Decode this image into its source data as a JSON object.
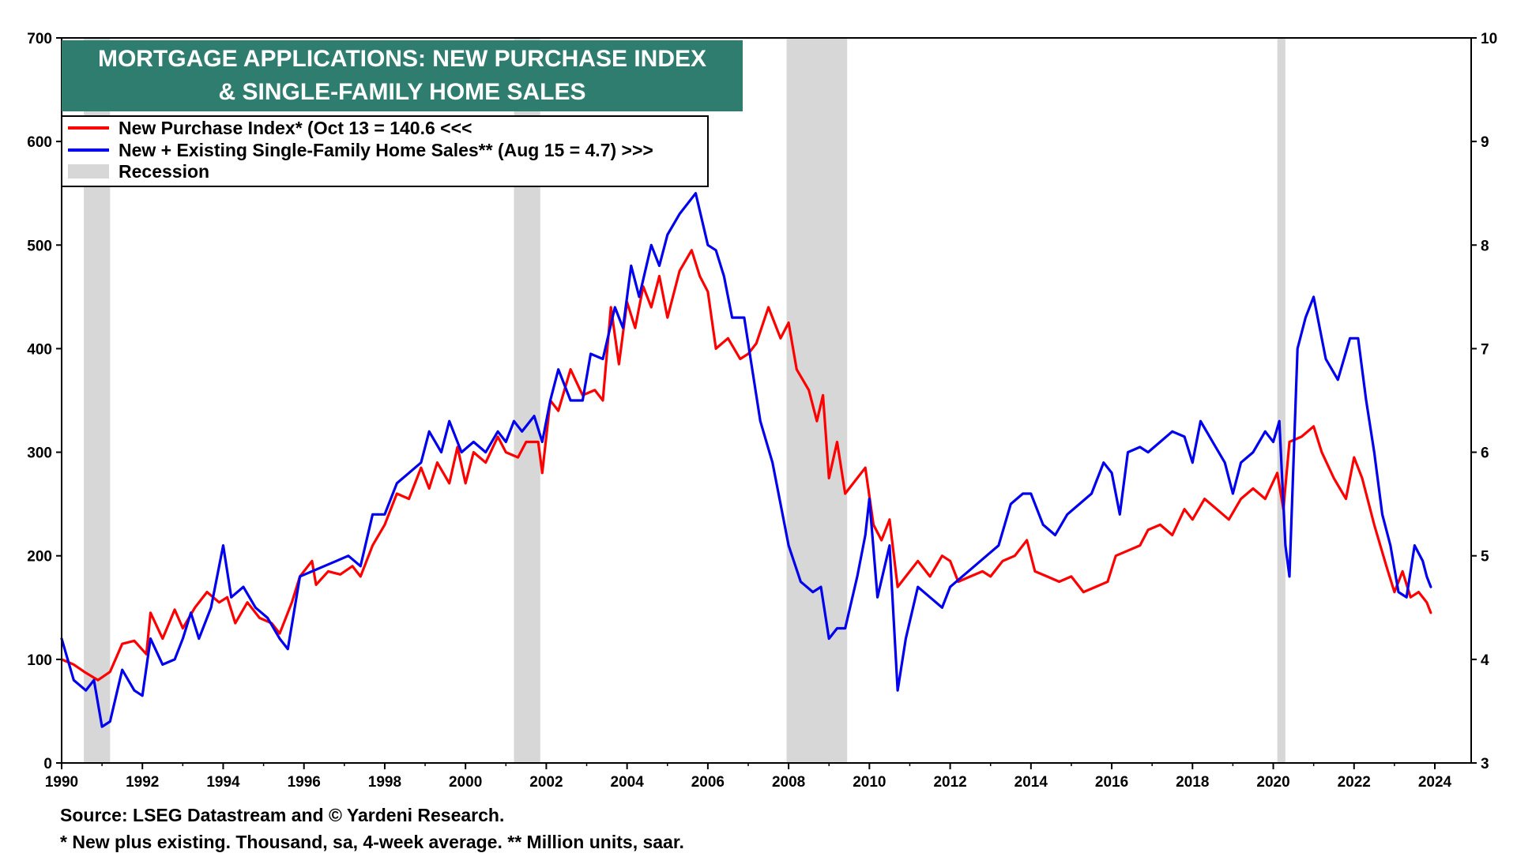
{
  "colors": {
    "red_series": "#ff0000",
    "blue_series": "#0000ee",
    "recession": "#d7d7d7",
    "title_bg": "#2e7d6e",
    "title_text": "#ffffff"
  },
  "chart_data": {
    "type": "line",
    "title": "MORTGAGE APPLICATIONS: NEW PURCHASE INDEX & SINGLE-FAMILY HOME SALES",
    "title_lines": [
      "MORTGAGE APPLICATIONS: NEW PURCHASE INDEX",
      "& SINGLE-FAMILY HOME SALES"
    ],
    "xlabel": "",
    "ylabel_left": "",
    "ylabel_right": "",
    "xlim": [
      1990,
      2024.9
    ],
    "ylim_left": [
      0,
      700
    ],
    "ylim_right": [
      3,
      10
    ],
    "x_ticks": [
      1990,
      1992,
      1994,
      1996,
      1998,
      2000,
      2002,
      2004,
      2006,
      2008,
      2010,
      2012,
      2014,
      2016,
      2018,
      2020,
      2022,
      2024
    ],
    "y_left_ticks": [
      0,
      100,
      200,
      300,
      400,
      500,
      600,
      700
    ],
    "y_right_ticks": [
      3,
      4,
      5,
      6,
      7,
      8,
      9,
      10
    ],
    "legend_position": "top-left",
    "legend": [
      {
        "label": "New Purchase Index* (Oct 13 = 140.6 <<<",
        "kind": "line",
        "color_key": "red_series"
      },
      {
        "label": "New + Existing Single-Family Home Sales** (Aug 15 = 4.7) >>>",
        "kind": "line",
        "color_key": "blue_series"
      },
      {
        "label": "Recession",
        "kind": "box",
        "color_key": "recession"
      }
    ],
    "recessions": [
      [
        1990.55,
        1991.2
      ],
      [
        2001.2,
        2001.85
      ],
      [
        2007.95,
        2009.45
      ],
      [
        2020.1,
        2020.3
      ]
    ],
    "series": [
      {
        "name": "New Purchase Index",
        "axis": "left",
        "color_key": "red_series",
        "points": [
          [
            1990.0,
            100
          ],
          [
            1990.3,
            95
          ],
          [
            1990.6,
            87
          ],
          [
            1990.9,
            80
          ],
          [
            1991.2,
            88
          ],
          [
            1991.5,
            115
          ],
          [
            1991.8,
            118
          ],
          [
            1992.1,
            105
          ],
          [
            1992.2,
            145
          ],
          [
            1992.5,
            120
          ],
          [
            1992.8,
            148
          ],
          [
            1993.0,
            130
          ],
          [
            1993.3,
            150
          ],
          [
            1993.6,
            165
          ],
          [
            1993.9,
            155
          ],
          [
            1994.1,
            160
          ],
          [
            1994.3,
            135
          ],
          [
            1994.6,
            155
          ],
          [
            1994.9,
            140
          ],
          [
            1995.2,
            135
          ],
          [
            1995.4,
            125
          ],
          [
            1995.7,
            155
          ],
          [
            1995.9,
            180
          ],
          [
            1996.2,
            195
          ],
          [
            1996.3,
            172
          ],
          [
            1996.6,
            185
          ],
          [
            1996.9,
            182
          ],
          [
            1997.2,
            190
          ],
          [
            1997.4,
            180
          ],
          [
            1997.7,
            210
          ],
          [
            1998.0,
            230
          ],
          [
            1998.3,
            260
          ],
          [
            1998.6,
            255
          ],
          [
            1998.9,
            285
          ],
          [
            1999.1,
            265
          ],
          [
            1999.3,
            290
          ],
          [
            1999.6,
            270
          ],
          [
            1999.8,
            305
          ],
          [
            2000.0,
            270
          ],
          [
            2000.2,
            300
          ],
          [
            2000.5,
            290
          ],
          [
            2000.8,
            315
          ],
          [
            2001.0,
            300
          ],
          [
            2001.3,
            295
          ],
          [
            2001.5,
            310
          ],
          [
            2001.8,
            310
          ],
          [
            2001.9,
            280
          ],
          [
            2002.1,
            350
          ],
          [
            2002.3,
            340
          ],
          [
            2002.6,
            380
          ],
          [
            2002.9,
            355
          ],
          [
            2003.2,
            360
          ],
          [
            2003.4,
            350
          ],
          [
            2003.6,
            440
          ],
          [
            2003.8,
            385
          ],
          [
            2004.0,
            445
          ],
          [
            2004.2,
            420
          ],
          [
            2004.4,
            460
          ],
          [
            2004.6,
            440
          ],
          [
            2004.8,
            470
          ],
          [
            2005.0,
            430
          ],
          [
            2005.3,
            475
          ],
          [
            2005.6,
            495
          ],
          [
            2005.8,
            470
          ],
          [
            2006.0,
            455
          ],
          [
            2006.2,
            400
          ],
          [
            2006.5,
            410
          ],
          [
            2006.8,
            390
          ],
          [
            2007.0,
            395
          ],
          [
            2007.2,
            405
          ],
          [
            2007.5,
            440
          ],
          [
            2007.8,
            410
          ],
          [
            2008.0,
            425
          ],
          [
            2008.2,
            380
          ],
          [
            2008.5,
            360
          ],
          [
            2008.7,
            330
          ],
          [
            2008.85,
            355
          ],
          [
            2009.0,
            275
          ],
          [
            2009.2,
            310
          ],
          [
            2009.4,
            260
          ],
          [
            2009.6,
            270
          ],
          [
            2009.9,
            285
          ],
          [
            2010.1,
            230
          ],
          [
            2010.3,
            215
          ],
          [
            2010.5,
            235
          ],
          [
            2010.7,
            170
          ],
          [
            2010.9,
            180
          ],
          [
            2011.2,
            195
          ],
          [
            2011.5,
            180
          ],
          [
            2011.8,
            200
          ],
          [
            2012.0,
            195
          ],
          [
            2012.2,
            175
          ],
          [
            2012.5,
            180
          ],
          [
            2012.8,
            185
          ],
          [
            2013.0,
            180
          ],
          [
            2013.3,
            195
          ],
          [
            2013.6,
            200
          ],
          [
            2013.9,
            215
          ],
          [
            2014.1,
            185
          ],
          [
            2014.4,
            180
          ],
          [
            2014.7,
            175
          ],
          [
            2015.0,
            180
          ],
          [
            2015.3,
            165
          ],
          [
            2015.6,
            170
          ],
          [
            2015.9,
            175
          ],
          [
            2016.1,
            200
          ],
          [
            2016.4,
            205
          ],
          [
            2016.7,
            210
          ],
          [
            2016.9,
            225
          ],
          [
            2017.2,
            230
          ],
          [
            2017.5,
            220
          ],
          [
            2017.8,
            245
          ],
          [
            2018.0,
            235
          ],
          [
            2018.3,
            255
          ],
          [
            2018.6,
            245
          ],
          [
            2018.9,
            235
          ],
          [
            2019.2,
            255
          ],
          [
            2019.5,
            265
          ],
          [
            2019.8,
            255
          ],
          [
            2020.1,
            280
          ],
          [
            2020.25,
            245
          ],
          [
            2020.4,
            310
          ],
          [
            2020.7,
            315
          ],
          [
            2021.0,
            325
          ],
          [
            2021.2,
            300
          ],
          [
            2021.5,
            275
          ],
          [
            2021.8,
            255
          ],
          [
            2022.0,
            295
          ],
          [
            2022.2,
            275
          ],
          [
            2022.5,
            230
          ],
          [
            2022.8,
            190
          ],
          [
            2023.0,
            165
          ],
          [
            2023.2,
            185
          ],
          [
            2023.4,
            160
          ],
          [
            2023.6,
            165
          ],
          [
            2023.8,
            155
          ],
          [
            2023.9,
            145
          ]
        ]
      },
      {
        "name": "New + Existing Single-Family Home Sales",
        "axis": "right",
        "color_key": "blue_series",
        "points": [
          [
            1990.0,
            4.2
          ],
          [
            1990.3,
            3.8
          ],
          [
            1990.6,
            3.7
          ],
          [
            1990.8,
            3.8
          ],
          [
            1991.0,
            3.35
          ],
          [
            1991.2,
            3.4
          ],
          [
            1991.5,
            3.9
          ],
          [
            1991.8,
            3.7
          ],
          [
            1992.0,
            3.65
          ],
          [
            1992.2,
            4.2
          ],
          [
            1992.5,
            3.95
          ],
          [
            1992.8,
            4.0
          ],
          [
            1993.0,
            4.2
          ],
          [
            1993.2,
            4.45
          ],
          [
            1993.4,
            4.2
          ],
          [
            1993.7,
            4.5
          ],
          [
            1994.0,
            5.1
          ],
          [
            1994.2,
            4.6
          ],
          [
            1994.5,
            4.7
          ],
          [
            1994.8,
            4.5
          ],
          [
            1995.1,
            4.4
          ],
          [
            1995.4,
            4.2
          ],
          [
            1995.6,
            4.1
          ],
          [
            1995.9,
            4.8
          ],
          [
            1996.2,
            4.85
          ],
          [
            1996.5,
            4.9
          ],
          [
            1996.8,
            4.95
          ],
          [
            1997.1,
            5.0
          ],
          [
            1997.4,
            4.9
          ],
          [
            1997.7,
            5.4
          ],
          [
            1998.0,
            5.4
          ],
          [
            1998.3,
            5.7
          ],
          [
            1998.6,
            5.8
          ],
          [
            1998.9,
            5.9
          ],
          [
            1999.1,
            6.2
          ],
          [
            1999.4,
            6.0
          ],
          [
            1999.6,
            6.3
          ],
          [
            1999.9,
            6.0
          ],
          [
            2000.2,
            6.1
          ],
          [
            2000.5,
            6.0
          ],
          [
            2000.8,
            6.2
          ],
          [
            2001.0,
            6.1
          ],
          [
            2001.2,
            6.3
          ],
          [
            2001.4,
            6.2
          ],
          [
            2001.7,
            6.35
          ],
          [
            2001.9,
            6.1
          ],
          [
            2002.1,
            6.5
          ],
          [
            2002.3,
            6.8
          ],
          [
            2002.6,
            6.5
          ],
          [
            2002.9,
            6.5
          ],
          [
            2003.1,
            6.95
          ],
          [
            2003.4,
            6.9
          ],
          [
            2003.7,
            7.4
          ],
          [
            2003.9,
            7.2
          ],
          [
            2004.1,
            7.8
          ],
          [
            2004.3,
            7.5
          ],
          [
            2004.6,
            8.0
          ],
          [
            2004.8,
            7.8
          ],
          [
            2005.0,
            8.1
          ],
          [
            2005.3,
            8.3
          ],
          [
            2005.5,
            8.4
          ],
          [
            2005.7,
            8.5
          ],
          [
            2006.0,
            8.0
          ],
          [
            2006.2,
            7.95
          ],
          [
            2006.4,
            7.7
          ],
          [
            2006.6,
            7.3
          ],
          [
            2006.9,
            7.3
          ],
          [
            2007.1,
            6.8
          ],
          [
            2007.3,
            6.3
          ],
          [
            2007.6,
            5.9
          ],
          [
            2007.8,
            5.5
          ],
          [
            2008.0,
            5.1
          ],
          [
            2008.3,
            4.75
          ],
          [
            2008.6,
            4.65
          ],
          [
            2008.8,
            4.7
          ],
          [
            2009.0,
            4.2
          ],
          [
            2009.2,
            4.3
          ],
          [
            2009.4,
            4.3
          ],
          [
            2009.7,
            4.8
          ],
          [
            2009.9,
            5.2
          ],
          [
            2010.0,
            5.55
          ],
          [
            2010.2,
            4.6
          ],
          [
            2010.5,
            5.1
          ],
          [
            2010.7,
            3.7
          ],
          [
            2010.9,
            4.2
          ],
          [
            2011.2,
            4.7
          ],
          [
            2011.5,
            4.6
          ],
          [
            2011.8,
            4.5
          ],
          [
            2012.0,
            4.7
          ],
          [
            2012.3,
            4.8
          ],
          [
            2012.6,
            4.9
          ],
          [
            2012.9,
            5.0
          ],
          [
            2013.2,
            5.1
          ],
          [
            2013.5,
            5.5
          ],
          [
            2013.8,
            5.6
          ],
          [
            2014.0,
            5.6
          ],
          [
            2014.3,
            5.3
          ],
          [
            2014.6,
            5.2
          ],
          [
            2014.9,
            5.4
          ],
          [
            2015.2,
            5.5
          ],
          [
            2015.5,
            5.6
          ],
          [
            2015.8,
            5.9
          ],
          [
            2016.0,
            5.8
          ],
          [
            2016.2,
            5.4
          ],
          [
            2016.4,
            6.0
          ],
          [
            2016.7,
            6.05
          ],
          [
            2016.9,
            6.0
          ],
          [
            2017.2,
            6.1
          ],
          [
            2017.5,
            6.2
          ],
          [
            2017.8,
            6.15
          ],
          [
            2018.0,
            5.9
          ],
          [
            2018.2,
            6.3
          ],
          [
            2018.5,
            6.1
          ],
          [
            2018.8,
            5.9
          ],
          [
            2019.0,
            5.6
          ],
          [
            2019.2,
            5.9
          ],
          [
            2019.5,
            6.0
          ],
          [
            2019.8,
            6.2
          ],
          [
            2020.0,
            6.1
          ],
          [
            2020.15,
            6.3
          ],
          [
            2020.3,
            5.1
          ],
          [
            2020.4,
            4.8
          ],
          [
            2020.6,
            7.0
          ],
          [
            2020.8,
            7.3
          ],
          [
            2021.0,
            7.5
          ],
          [
            2021.3,
            6.9
          ],
          [
            2021.6,
            6.7
          ],
          [
            2021.9,
            7.1
          ],
          [
            2022.1,
            7.1
          ],
          [
            2022.3,
            6.5
          ],
          [
            2022.5,
            6.0
          ],
          [
            2022.7,
            5.4
          ],
          [
            2022.9,
            5.1
          ],
          [
            2023.1,
            4.65
          ],
          [
            2023.3,
            4.6
          ],
          [
            2023.5,
            5.1
          ],
          [
            2023.7,
            4.95
          ],
          [
            2023.8,
            4.8
          ],
          [
            2023.9,
            4.7
          ]
        ]
      }
    ],
    "notes": [
      "Source: LSEG Datastream and © Yardeni Research.",
      "* New plus existing. Thousand, sa, 4-week average. ** Million units, saar."
    ]
  }
}
